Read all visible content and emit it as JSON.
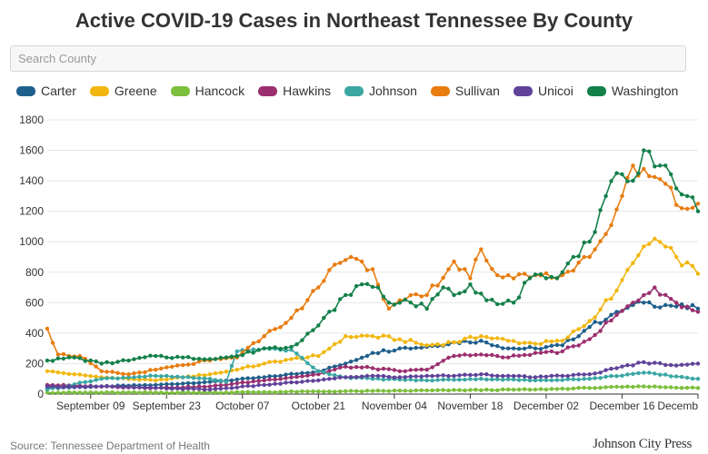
{
  "header": {
    "title": "Active COVID-19 Cases in Northeast Tennessee By County"
  },
  "search": {
    "placeholder": "Search County",
    "value": ""
  },
  "footer": {
    "source": "Source: Tennessee Department of Health",
    "brand": "Johnson City Press"
  },
  "chart_data": {
    "type": "line",
    "title": "Active COVID-19 Cases in Northeast Tennessee By County",
    "xlabel": "",
    "ylabel": "",
    "ylim": [
      0,
      1800
    ],
    "yticks": [
      0,
      200,
      400,
      600,
      800,
      1000,
      1200,
      1400,
      1600,
      1800
    ],
    "x_tick_labels": [
      "September 09",
      "September 23",
      "October 07",
      "October 21",
      "November 04",
      "November 18",
      "December 02",
      "December 16",
      "Decemb"
    ],
    "x_tick_positions_day": [
      8,
      22,
      36,
      50,
      64,
      78,
      92,
      106,
      120
    ],
    "x_range_days": [
      0,
      120
    ],
    "x_description": "days since September 01, one point per day",
    "grid": "horizontal",
    "legend_position": "top-left",
    "series": [
      {
        "name": "Carter",
        "color": "#1f5f8b",
        "key_days": [
          0,
          10,
          20,
          30,
          40,
          50,
          55,
          60,
          65,
          70,
          75,
          80,
          85,
          90,
          95,
          100,
          105,
          110,
          115,
          120
        ],
        "key_values": [
          40,
          50,
          60,
          80,
          110,
          150,
          200,
          270,
          300,
          310,
          340,
          350,
          300,
          300,
          320,
          440,
          540,
          600,
          580,
          560
        ]
      },
      {
        "name": "Greene",
        "color": "#f2b70f",
        "key_days": [
          0,
          5,
          10,
          20,
          25,
          30,
          35,
          40,
          45,
          50,
          55,
          60,
          65,
          70,
          75,
          80,
          85,
          90,
          95,
          100,
          105,
          108,
          112,
          116,
          120
        ],
        "key_values": [
          150,
          130,
          110,
          90,
          110,
          130,
          160,
          200,
          230,
          250,
          380,
          380,
          360,
          320,
          340,
          380,
          350,
          330,
          350,
          480,
          680,
          860,
          1020,
          900,
          790
        ]
      },
      {
        "name": "Hancock",
        "color": "#7cbf3c",
        "key_days": [
          0,
          30,
          60,
          90,
          100,
          110,
          120
        ],
        "key_values": [
          10,
          10,
          20,
          30,
          40,
          50,
          40
        ]
      },
      {
        "name": "Hawkins",
        "color": "#9b2f6e",
        "key_days": [
          0,
          10,
          20,
          30,
          40,
          50,
          55,
          60,
          65,
          70,
          75,
          80,
          85,
          90,
          95,
          100,
          105,
          108,
          112,
          116,
          120
        ],
        "key_values": [
          60,
          50,
          40,
          50,
          90,
          130,
          180,
          170,
          150,
          160,
          250,
          260,
          240,
          270,
          280,
          360,
          520,
          600,
          700,
          600,
          540
        ]
      },
      {
        "name": "Johnson",
        "color": "#3aa7a3",
        "key_days": [
          0,
          10,
          20,
          30,
          33,
          35,
          40,
          45,
          50,
          55,
          60,
          70,
          80,
          90,
          100,
          110,
          120
        ],
        "key_values": [
          30,
          100,
          120,
          100,
          80,
          280,
          300,
          290,
          150,
          110,
          100,
          90,
          100,
          90,
          100,
          140,
          100
        ]
      },
      {
        "name": "Sullivan",
        "color": "#e87c0e",
        "key_days": [
          0,
          2,
          6,
          10,
          15,
          20,
          25,
          30,
          35,
          40,
          45,
          50,
          53,
          56,
          60,
          63,
          66,
          70,
          75,
          78,
          80,
          83,
          85,
          88,
          90,
          95,
          100,
          103,
          106,
          108,
          111,
          114,
          117,
          120
        ],
        "key_values": [
          430,
          260,
          250,
          150,
          130,
          160,
          190,
          220,
          240,
          380,
          500,
          700,
          850,
          900,
          820,
          560,
          620,
          650,
          870,
          760,
          950,
          780,
          780,
          790,
          780,
          780,
          900,
          1050,
          1300,
          1500,
          1430,
          1380,
          1220,
          1250
        ]
      },
      {
        "name": "Unicoi",
        "color": "#60429a",
        "key_days": [
          0,
          10,
          20,
          30,
          40,
          50,
          55,
          60,
          65,
          70,
          75,
          80,
          85,
          90,
          95,
          100,
          105,
          110,
          115,
          120
        ],
        "key_values": [
          50,
          50,
          40,
          30,
          60,
          90,
          110,
          120,
          110,
          120,
          120,
          130,
          120,
          110,
          120,
          130,
          170,
          210,
          190,
          200
        ]
      },
      {
        "name": "Washington",
        "color": "#13804a",
        "key_days": [
          0,
          5,
          10,
          15,
          20,
          25,
          30,
          35,
          40,
          45,
          50,
          55,
          58,
          61,
          63,
          66,
          70,
          73,
          75,
          78,
          80,
          83,
          86,
          89,
          92,
          95,
          97,
          100,
          103,
          105,
          108,
          110,
          113,
          116,
          118,
          120
        ],
        "key_values": [
          220,
          240,
          200,
          220,
          250,
          240,
          230,
          250,
          300,
          310,
          450,
          650,
          720,
          700,
          600,
          620,
          560,
          700,
          650,
          720,
          660,
          590,
          600,
          760,
          760,
          800,
          900,
          1000,
          1300,
          1450,
          1400,
          1600,
          1500,
          1350,
          1300,
          1200
        ]
      }
    ]
  }
}
